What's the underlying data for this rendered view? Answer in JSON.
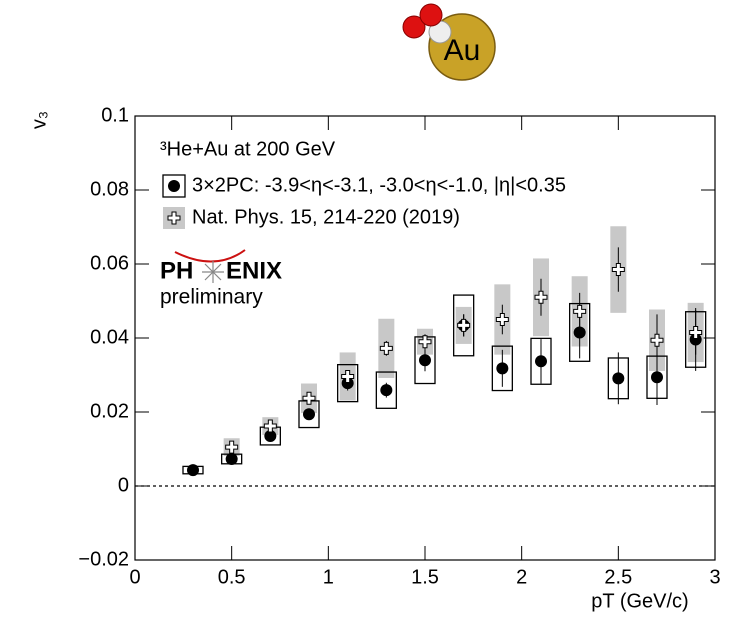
{
  "chart_data": {
    "type": "scatter",
    "image_label": "Au",
    "annotation": "³He+Au at 200 GeV",
    "logo": [
      "PH",
      "ENIX"
    ],
    "logo_subtitle": "preliminary",
    "x_label": "pT (GeV/c)",
    "y_label": "v₃",
    "xlim": [
      0,
      3
    ],
    "ylim": [
      -0.02,
      0.1
    ],
    "xticks": [
      0,
      0.5,
      1,
      1.5,
      2,
      2.5,
      3
    ],
    "yticks": [
      {
        "value": -0.02,
        "label": "−0.02"
      },
      0,
      0.02,
      0.04,
      0.06,
      0.08,
      0.1
    ],
    "series": [
      {
        "name": "3×2PC: -3.9<η<-3.1, -3.0<η<-1.0, |η|<0.35",
        "color": "#000000",
        "marker": "circle",
        "x": [
          0.3,
          0.5,
          0.7,
          0.9,
          1.1,
          1.3,
          1.5,
          1.7,
          1.9,
          2.1,
          2.3,
          2.5,
          2.7,
          2.9
        ],
        "values": [
          0.0043,
          0.0073,
          0.0135,
          0.0194,
          0.0278,
          0.0259,
          0.034,
          0.0434,
          0.0318,
          0.0337,
          0.0415,
          0.0291,
          0.0294,
          0.0396
        ],
        "stat": [
          0.0003,
          0.0005,
          0.0008,
          0.001,
          0.002,
          0.002,
          0.003,
          0.003,
          0.005,
          0.006,
          0.007,
          0.007,
          0.0075,
          0.0085
        ],
        "sys": [
          0.001,
          0.0013,
          0.0024,
          0.0036,
          0.005,
          0.0049,
          0.0063,
          0.0082,
          0.006,
          0.0062,
          0.0078,
          0.0055,
          0.0057,
          0.0075
        ]
      },
      {
        "name": "Nat. Phys. 15, 214-220 (2019)",
        "color": "#c8c8c8",
        "marker": "cross",
        "x": [
          0.5,
          0.7,
          0.9,
          1.1,
          1.3,
          1.5,
          1.7,
          1.9,
          2.1,
          2.3,
          2.5,
          2.7,
          2.9
        ],
        "values": [
          0.0105,
          0.0162,
          0.0237,
          0.0296,
          0.0372,
          0.039,
          0.0434,
          0.045,
          0.051,
          0.0472,
          0.0585,
          0.0394,
          0.0415
        ],
        "stat": [
          0.001,
          0.001,
          0.0012,
          0.0015,
          0.002,
          0.002,
          0.003,
          0.004,
          0.005,
          0.005,
          0.006,
          0.007,
          0.006
        ],
        "sys": [
          0.0024,
          0.0024,
          0.004,
          0.0065,
          0.008,
          0.0035,
          0.005,
          0.0095,
          0.0105,
          0.0095,
          0.0117,
          0.0083,
          0.008
        ]
      }
    ]
  }
}
